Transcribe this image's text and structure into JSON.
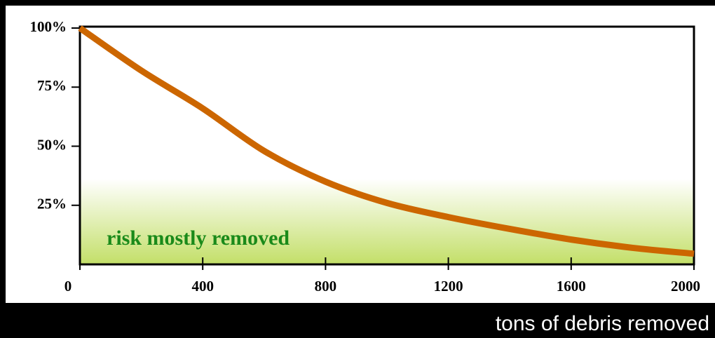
{
  "chart_data": {
    "type": "line",
    "x": [
      0,
      200,
      400,
      600,
      800,
      1000,
      1200,
      1400,
      1600,
      1800,
      2000
    ],
    "series": [
      {
        "color": "#cc6600",
        "values": [
          100,
          82,
          66,
          48,
          35,
          26,
          20,
          15,
          10.5,
          7,
          4.5
        ]
      }
    ],
    "xlim": [
      0,
      2000
    ],
    "xticks": [
      0,
      400,
      800,
      1200,
      1600,
      2000
    ],
    "ylim": [
      0,
      100
    ],
    "yticks": [
      {
        "value": 25,
        "label": "25%"
      },
      {
        "value": 50,
        "label": "50%"
      },
      {
        "value": 75,
        "label": "75%"
      },
      {
        "value": 100,
        "label": "100%"
      }
    ],
    "x_label": "tons of debris removed",
    "annotation": "risk mostly removed"
  }
}
